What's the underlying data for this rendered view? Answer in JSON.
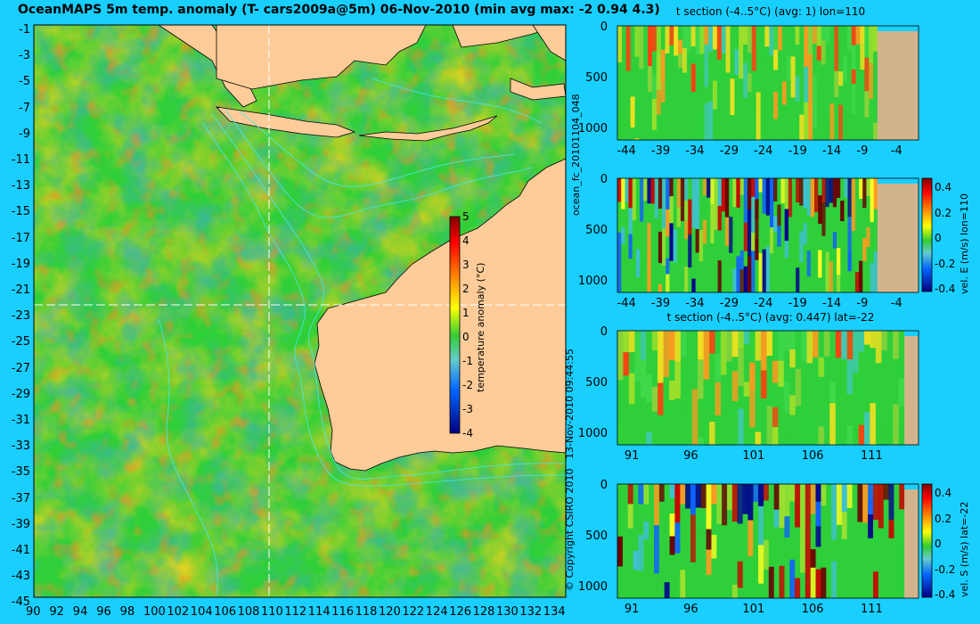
{
  "main_map": {
    "title": "OceanMAPS 5m temp. anomaly (T- cars2009a@5m) 06-Nov-2010 (min avg max: -2 0.94 4.3)",
    "lat_ticks": [
      "-1",
      "-3",
      "-5",
      "-7",
      "-9",
      "-11",
      "-13",
      "-15",
      "-17",
      "-19",
      "-21",
      "-23",
      "-25",
      "-27",
      "-29",
      "-31",
      "-33",
      "-35",
      "-37",
      "-39",
      "-41",
      "-43",
      "-45"
    ],
    "lon_ticks": [
      "90",
      "92",
      "94",
      "96",
      "98",
      "100",
      "102",
      "104",
      "106",
      "108",
      "110",
      "112",
      "114",
      "116",
      "118",
      "120",
      "122",
      "124",
      "126",
      "128",
      "130",
      "132",
      "134"
    ],
    "colorbar": {
      "label": "temperature anomaly (°C)",
      "ticks": [
        "5",
        "4",
        "3",
        "2",
        "1",
        "0",
        "-1",
        "-2",
        "-3",
        "-4"
      ]
    },
    "crosshair": {
      "lon": 110,
      "lat": -22
    },
    "colors": {
      "ocean_base": "#2fcf3a",
      "land": "#ffcc99",
      "contour": "#46e8e8",
      "crosshair": "#ffffff"
    }
  },
  "side_text": {
    "timestamp": "13-Nov-2010 09:44:55",
    "copyright": "© Copyright CSIRO 2010",
    "run_id": "ocean_fc_20101104_048"
  },
  "chart_data": [
    {
      "type": "heatmap",
      "title": "t section (-4..5°C) (avg: 1) lon=110",
      "x_ticks": [
        "-44",
        "-39",
        "-34",
        "-29",
        "-24",
        "-19",
        "-14",
        "-9",
        "-4"
      ],
      "y_ticks": [
        "0",
        "500",
        "1000"
      ],
      "land_from_x": -7.5,
      "y_label": ""
    },
    {
      "type": "heatmap",
      "title": "",
      "x_ticks": [
        "-44",
        "-39",
        "-34",
        "-29",
        "-24",
        "-19",
        "-14",
        "-9",
        "-4"
      ],
      "y_ticks": [
        "0",
        "500",
        "1000"
      ],
      "colorbar_ticks": [
        "0.4",
        "0.2",
        "0",
        "-0.2",
        "-0.4"
      ],
      "colorbar_label": "vel. E (m/s) lon=110"
    },
    {
      "type": "heatmap",
      "title": "t section (-4..5°C) (avg: 0.447) lat=-22",
      "x_ticks": [
        "91",
        "96",
        "101",
        "106",
        "111"
      ],
      "y_ticks": [
        "0",
        "500",
        "1000"
      ],
      "land_from_x": 113.8
    },
    {
      "type": "heatmap",
      "title": "",
      "x_ticks": [
        "91",
        "96",
        "101",
        "106",
        "111"
      ],
      "y_ticks": [
        "0",
        "500",
        "1000"
      ],
      "colorbar_ticks": [
        "0.4",
        "0.2",
        "0",
        "-0.2",
        "-0.4"
      ],
      "colorbar_label": "vel. S (m/s) lat=-22"
    }
  ]
}
